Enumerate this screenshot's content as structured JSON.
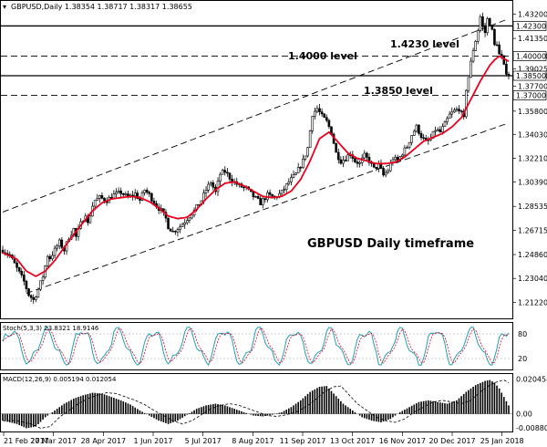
{
  "header": {
    "caret": "▾",
    "ohlc": "GBPUSD,Daily  1.38354 1.38717 1.38317 1.38655"
  },
  "annotations": {
    "level_1423": "1.4230 level",
    "level_1400": "1.4000 level",
    "level_1385": "1.3850 level",
    "timeframe": "GBPUSD Daily timeframe"
  },
  "colors": {
    "ma": "#e8001c",
    "stoch_main": "#1fa0b8",
    "stoch_signal": "#e8001c",
    "macd_hist": "#000000",
    "macd_signal": "#000000"
  },
  "chart_data": [
    {
      "type": "candlestick",
      "symbol": "GBPUSD",
      "timeframe": "Daily",
      "ylim": [
        1.202,
        1.44
      ],
      "y_ticks": [
        "1.43200",
        "1.41350",
        "1.40000",
        "1.39025",
        "1.38500",
        "1.37700",
        "1.35800",
        "1.34030",
        "1.32210",
        "1.30390",
        "1.28535",
        "1.26715",
        "1.24860",
        "1.23040",
        "1.21220"
      ],
      "x_ticks": [
        "21 Feb 2017",
        "27 Mar 2017",
        "28 Apr 2017",
        "1 Jun 2017",
        "5 Jul 2017",
        "8 Aug 2017",
        "11 Sep 2017",
        "13 Oct 2017",
        "16 Nov 2017",
        "20 Dec 2017",
        "25 Jan 2018"
      ],
      "horizontal_levels": [
        {
          "value": 1.423,
          "label": "1.42300",
          "style": "solid"
        },
        {
          "value": 1.4,
          "label": "1.40000",
          "style": "dashed"
        },
        {
          "value": 1.385,
          "label": "1.38500",
          "style": "solid"
        },
        {
          "value": 1.37,
          "label": "1.37000",
          "style": "dashed"
        }
      ],
      "close_path": [
        [
          0,
          1.252
        ],
        [
          3,
          1.248
        ],
        [
          6,
          1.238
        ],
        [
          9,
          1.228
        ],
        [
          11,
          1.218
        ],
        [
          13,
          1.214
        ],
        [
          15,
          1.222
        ],
        [
          17,
          1.232
        ],
        [
          19,
          1.248
        ],
        [
          20,
          1.246
        ],
        [
          22,
          1.252
        ],
        [
          24,
          1.258
        ],
        [
          26,
          1.252
        ],
        [
          28,
          1.262
        ],
        [
          30,
          1.268
        ],
        [
          31,
          1.262
        ],
        [
          33,
          1.272
        ],
        [
          35,
          1.28
        ],
        [
          36,
          1.272
        ],
        [
          38,
          1.286
        ],
        [
          39,
          1.29
        ],
        [
          41,
          1.292
        ],
        [
          44,
          1.29
        ],
        [
          47,
          1.294
        ],
        [
          50,
          1.296
        ],
        [
          53,
          1.292
        ],
        [
          56,
          1.295
        ],
        [
          58,
          1.29
        ],
        [
          60,
          1.298
        ],
        [
          62,
          1.294
        ],
        [
          65,
          1.286
        ],
        [
          67,
          1.282
        ],
        [
          69,
          1.276
        ],
        [
          70,
          1.27
        ],
        [
          72,
          1.266
        ],
        [
          75,
          1.27
        ],
        [
          78,
          1.276
        ],
        [
          81,
          1.282
        ],
        [
          84,
          1.29
        ],
        [
          86,
          1.298
        ],
        [
          88,
          1.304
        ],
        [
          90,
          1.296
        ],
        [
          92,
          1.31
        ],
        [
          94,
          1.312
        ],
        [
          97,
          1.305
        ],
        [
          100,
          1.301
        ],
        [
          103,
          1.299
        ],
        [
          106,
          1.293
        ],
        [
          109,
          1.288
        ],
        [
          112,
          1.294
        ],
        [
          115,
          1.292
        ],
        [
          118,
          1.296
        ],
        [
          121,
          1.304
        ],
        [
          124,
          1.31
        ],
        [
          127,
          1.32
        ],
        [
          129,
          1.33
        ],
        [
          131,
          1.356
        ],
        [
          133,
          1.36
        ],
        [
          135,
          1.354
        ],
        [
          137,
          1.35
        ],
        [
          139,
          1.342
        ],
        [
          141,
          1.326
        ],
        [
          143,
          1.32
        ],
        [
          145,
          1.322
        ],
        [
          147,
          1.326
        ],
        [
          149,
          1.32
        ],
        [
          151,
          1.318
        ],
        [
          153,
          1.324
        ],
        [
          155,
          1.32
        ],
        [
          157,
          1.314
        ],
        [
          159,
          1.317
        ],
        [
          161,
          1.309
        ],
        [
          163,
          1.313
        ],
        [
          165,
          1.322
        ],
        [
          167,
          1.32
        ],
        [
          169,
          1.326
        ],
        [
          171,
          1.331
        ],
        [
          173,
          1.34
        ],
        [
          175,
          1.346
        ],
        [
          177,
          1.339
        ],
        [
          179,
          1.334
        ],
        [
          181,
          1.337
        ],
        [
          183,
          1.344
        ],
        [
          185,
          1.342
        ],
        [
          187,
          1.348
        ],
        [
          189,
          1.355
        ],
        [
          191,
          1.358
        ],
        [
          193,
          1.36
        ],
        [
          195,
          1.352
        ],
        [
          196,
          1.375
        ],
        [
          197,
          1.384
        ],
        [
          198,
          1.395
        ],
        [
          199,
          1.405
        ],
        [
          200,
          1.412
        ],
        [
          201,
          1.42
        ],
        [
          202,
          1.43
        ],
        [
          203,
          1.422
        ],
        [
          204,
          1.418
        ],
        [
          205,
          1.428
        ],
        [
          206,
          1.425
        ],
        [
          207,
          1.419
        ],
        [
          208,
          1.408
        ],
        [
          209,
          1.41
        ],
        [
          210,
          1.401
        ],
        [
          211,
          1.399
        ],
        [
          212,
          1.392
        ],
        [
          213,
          1.388
        ],
        [
          214,
          1.386
        ]
      ],
      "moving_average_path": [
        [
          0,
          1.25
        ],
        [
          6,
          1.245
        ],
        [
          10,
          1.236
        ],
        [
          14,
          1.232
        ],
        [
          18,
          1.236
        ],
        [
          22,
          1.244
        ],
        [
          26,
          1.254
        ],
        [
          30,
          1.264
        ],
        [
          34,
          1.273
        ],
        [
          38,
          1.282
        ],
        [
          42,
          1.288
        ],
        [
          46,
          1.291
        ],
        [
          50,
          1.292
        ],
        [
          54,
          1.293
        ],
        [
          58,
          1.292
        ],
        [
          62,
          1.289
        ],
        [
          66,
          1.284
        ],
        [
          70,
          1.278
        ],
        [
          74,
          1.276
        ],
        [
          78,
          1.277
        ],
        [
          82,
          1.283
        ],
        [
          86,
          1.291
        ],
        [
          90,
          1.298
        ],
        [
          94,
          1.303
        ],
        [
          98,
          1.304
        ],
        [
          102,
          1.301
        ],
        [
          106,
          1.297
        ],
        [
          110,
          1.293
        ],
        [
          114,
          1.292
        ],
        [
          118,
          1.293
        ],
        [
          122,
          1.297
        ],
        [
          126,
          1.306
        ],
        [
          130,
          1.32
        ],
        [
          134,
          1.337
        ],
        [
          138,
          1.342
        ],
        [
          142,
          1.334
        ],
        [
          146,
          1.326
        ],
        [
          150,
          1.322
        ],
        [
          154,
          1.32
        ],
        [
          158,
          1.318
        ],
        [
          162,
          1.318
        ],
        [
          166,
          1.319
        ],
        [
          170,
          1.323
        ],
        [
          174,
          1.329
        ],
        [
          178,
          1.335
        ],
        [
          182,
          1.338
        ],
        [
          186,
          1.341
        ],
        [
          190,
          1.346
        ],
        [
          194,
          1.353
        ],
        [
          198,
          1.367
        ],
        [
          202,
          1.381
        ],
        [
          206,
          1.393
        ],
        [
          208,
          1.397
        ],
        [
          210,
          1.4
        ],
        [
          212,
          1.398
        ],
        [
          214,
          1.396
        ]
      ],
      "channel_lines": [
        {
          "from": [
            0,
            1.281
          ],
          "to": [
            214,
            1.4285
          ],
          "style": "dashed"
        },
        {
          "from": [
            10,
            1.219
          ],
          "to": [
            214,
            1.349
          ],
          "style": "dashed"
        }
      ]
    },
    {
      "type": "line",
      "indicator": "Stoch(5,3,3)",
      "header": "Stoch(5,3,3) 23.8321 18.9146",
      "ylim": [
        0,
        100
      ],
      "y_ticks": [
        "80",
        "20"
      ]
    },
    {
      "type": "bar",
      "indicator": "MACD(12,26,9)",
      "header": "MACD(12,26,9) 0.005194 0.012054",
      "ylim": [
        -0.0088,
        0.0214
      ],
      "y_ticks": [
        "0.020458",
        "0.00",
        "-0.008808"
      ],
      "zero_line": 0.0,
      "histogram_path": [
        [
          0,
          -0.004
        ],
        [
          6,
          -0.006
        ],
        [
          10,
          -0.0085
        ],
        [
          14,
          -0.0075
        ],
        [
          18,
          -0.002
        ],
        [
          22,
          0.002
        ],
        [
          26,
          0.006
        ],
        [
          30,
          0.009
        ],
        [
          34,
          0.011
        ],
        [
          38,
          0.0125
        ],
        [
          42,
          0.012
        ],
        [
          46,
          0.01
        ],
        [
          50,
          0.008
        ],
        [
          54,
          0.0055
        ],
        [
          58,
          0.002
        ],
        [
          62,
          -0.001
        ],
        [
          66,
          -0.004
        ],
        [
          70,
          -0.006
        ],
        [
          74,
          -0.004
        ],
        [
          78,
          -0.0005
        ],
        [
          82,
          0.003
        ],
        [
          86,
          0.005
        ],
        [
          90,
          0.006
        ],
        [
          94,
          0.005
        ],
        [
          98,
          0.003
        ],
        [
          102,
          0.001
        ],
        [
          106,
          -0.001
        ],
        [
          110,
          -0.0015
        ],
        [
          114,
          -0.0005
        ],
        [
          118,
          0.001
        ],
        [
          122,
          0.004
        ],
        [
          126,
          0.008
        ],
        [
          130,
          0.013
        ],
        [
          134,
          0.016
        ],
        [
          137,
          0.0165
        ],
        [
          140,
          0.012
        ],
        [
          144,
          0.006
        ],
        [
          148,
          0.002
        ],
        [
          152,
          -0.002
        ],
        [
          156,
          -0.004
        ],
        [
          160,
          -0.005
        ],
        [
          164,
          -0.003
        ],
        [
          168,
          0.001
        ],
        [
          172,
          0.004
        ],
        [
          176,
          0.007
        ],
        [
          180,
          0.008
        ],
        [
          184,
          0.007
        ],
        [
          188,
          0.006
        ],
        [
          192,
          0.008
        ],
        [
          196,
          0.013
        ],
        [
          200,
          0.017
        ],
        [
          204,
          0.0195
        ],
        [
          206,
          0.02
        ],
        [
          208,
          0.0185
        ],
        [
          210,
          0.015
        ],
        [
          212,
          0.01
        ],
        [
          214,
          0.005
        ]
      ]
    }
  ]
}
